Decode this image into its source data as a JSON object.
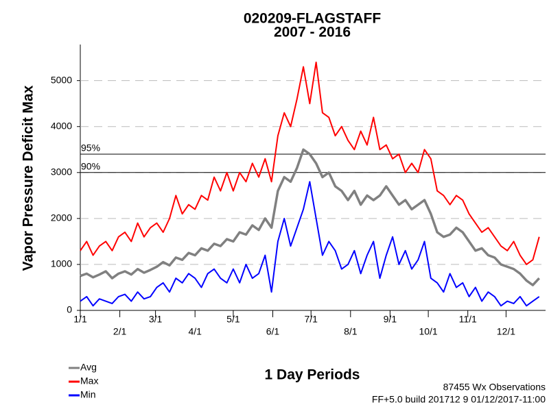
{
  "chart_data": {
    "type": "line",
    "title": "020209-FLAGSTAFF",
    "subtitle": "2007 - 2016",
    "y_label": "Vapor Pressure Deficit Max",
    "x_label": "1 Day Periods",
    "footer": [
      "87455 Wx Observations",
      "FF+5.0 build 201712 9 01/12/2017-11:00"
    ],
    "x": [
      1,
      6,
      11,
      16,
      21,
      26,
      31,
      36,
      41,
      46,
      51,
      56,
      61,
      66,
      71,
      76,
      81,
      86,
      91,
      96,
      101,
      106,
      111,
      116,
      121,
      126,
      131,
      136,
      141,
      146,
      151,
      156,
      161,
      166,
      171,
      176,
      181,
      186,
      191,
      196,
      201,
      206,
      211,
      216,
      221,
      226,
      231,
      236,
      241,
      246,
      251,
      256,
      261,
      266,
      271,
      276,
      281,
      286,
      291,
      296,
      301,
      306,
      311,
      316,
      321,
      326,
      331,
      336,
      341,
      346,
      351,
      356,
      361
    ],
    "series": [
      {
        "name": "Avg",
        "color": "#808080",
        "values": [
          750,
          800,
          720,
          780,
          850,
          700,
          800,
          850,
          780,
          900,
          820,
          880,
          950,
          1050,
          980,
          1150,
          1100,
          1250,
          1200,
          1350,
          1300,
          1450,
          1400,
          1550,
          1500,
          1700,
          1650,
          1850,
          1750,
          2000,
          1800,
          2600,
          2900,
          2800,
          3100,
          3500,
          3400,
          3200,
          2900,
          3000,
          2700,
          2600,
          2400,
          2600,
          2300,
          2500,
          2400,
          2500,
          2700,
          2500,
          2300,
          2400,
          2200,
          2300,
          2400,
          2100,
          1700,
          1600,
          1650,
          1800,
          1700,
          1500,
          1300,
          1350,
          1200,
          1150,
          1000,
          950,
          900,
          800,
          650,
          550,
          700
        ]
      },
      {
        "name": "Max",
        "color": "#ff0000",
        "values": [
          1300,
          1500,
          1200,
          1400,
          1500,
          1300,
          1600,
          1700,
          1500,
          1900,
          1600,
          1800,
          1900,
          1700,
          2000,
          2500,
          2100,
          2300,
          2200,
          2500,
          2400,
          2900,
          2600,
          3000,
          2600,
          3000,
          2800,
          3200,
          2900,
          3300,
          2800,
          3800,
          4300,
          4000,
          4600,
          5300,
          4500,
          5400,
          4300,
          4200,
          3800,
          4000,
          3700,
          3500,
          3900,
          3600,
          4200,
          3500,
          3600,
          3300,
          3400,
          3000,
          3200,
          3000,
          3500,
          3300,
          2600,
          2500,
          2300,
          2500,
          2400,
          2100,
          1900,
          1700,
          1800,
          1600,
          1400,
          1300,
          1500,
          1200,
          1000,
          1100,
          1600
        ]
      },
      {
        "name": "Min",
        "color": "#0000ff",
        "values": [
          200,
          300,
          100,
          250,
          200,
          150,
          300,
          350,
          200,
          400,
          250,
          300,
          500,
          600,
          400,
          700,
          600,
          800,
          700,
          500,
          800,
          900,
          700,
          600,
          900,
          600,
          1000,
          700,
          800,
          1200,
          400,
          1500,
          2000,
          1400,
          1800,
          2200,
          2800,
          2000,
          1200,
          1500,
          1300,
          900,
          1000,
          1300,
          800,
          1200,
          1500,
          700,
          1200,
          1600,
          1000,
          1300,
          900,
          1100,
          1500,
          700,
          600,
          400,
          800,
          500,
          600,
          300,
          500,
          200,
          400,
          300,
          100,
          200,
          150,
          300,
          100,
          200,
          300
        ]
      }
    ],
    "xlim": [
      1,
      366
    ],
    "xticks": [
      {
        "value": 1,
        "label": "1/1"
      },
      {
        "value": 32,
        "label": "2/1"
      },
      {
        "value": 60,
        "label": "3/1"
      },
      {
        "value": 91,
        "label": "4/1"
      },
      {
        "value": 121,
        "label": "5/1"
      },
      {
        "value": 152,
        "label": "6/1"
      },
      {
        "value": 182,
        "label": "7/1"
      },
      {
        "value": 213,
        "label": "8/1"
      },
      {
        "value": 244,
        "label": "9/1"
      },
      {
        "value": 274,
        "label": "10/1"
      },
      {
        "value": 305,
        "label": "11/1"
      },
      {
        "value": 335,
        "label": "12/1"
      }
    ],
    "ylim": [
      0,
      5800
    ],
    "yticks": [
      0,
      1000,
      2000,
      3000,
      4000,
      5000
    ],
    "grid": true,
    "reference_lines": [
      {
        "label": "95%",
        "value": 3400
      },
      {
        "label": "90%",
        "value": 3000
      }
    ]
  }
}
